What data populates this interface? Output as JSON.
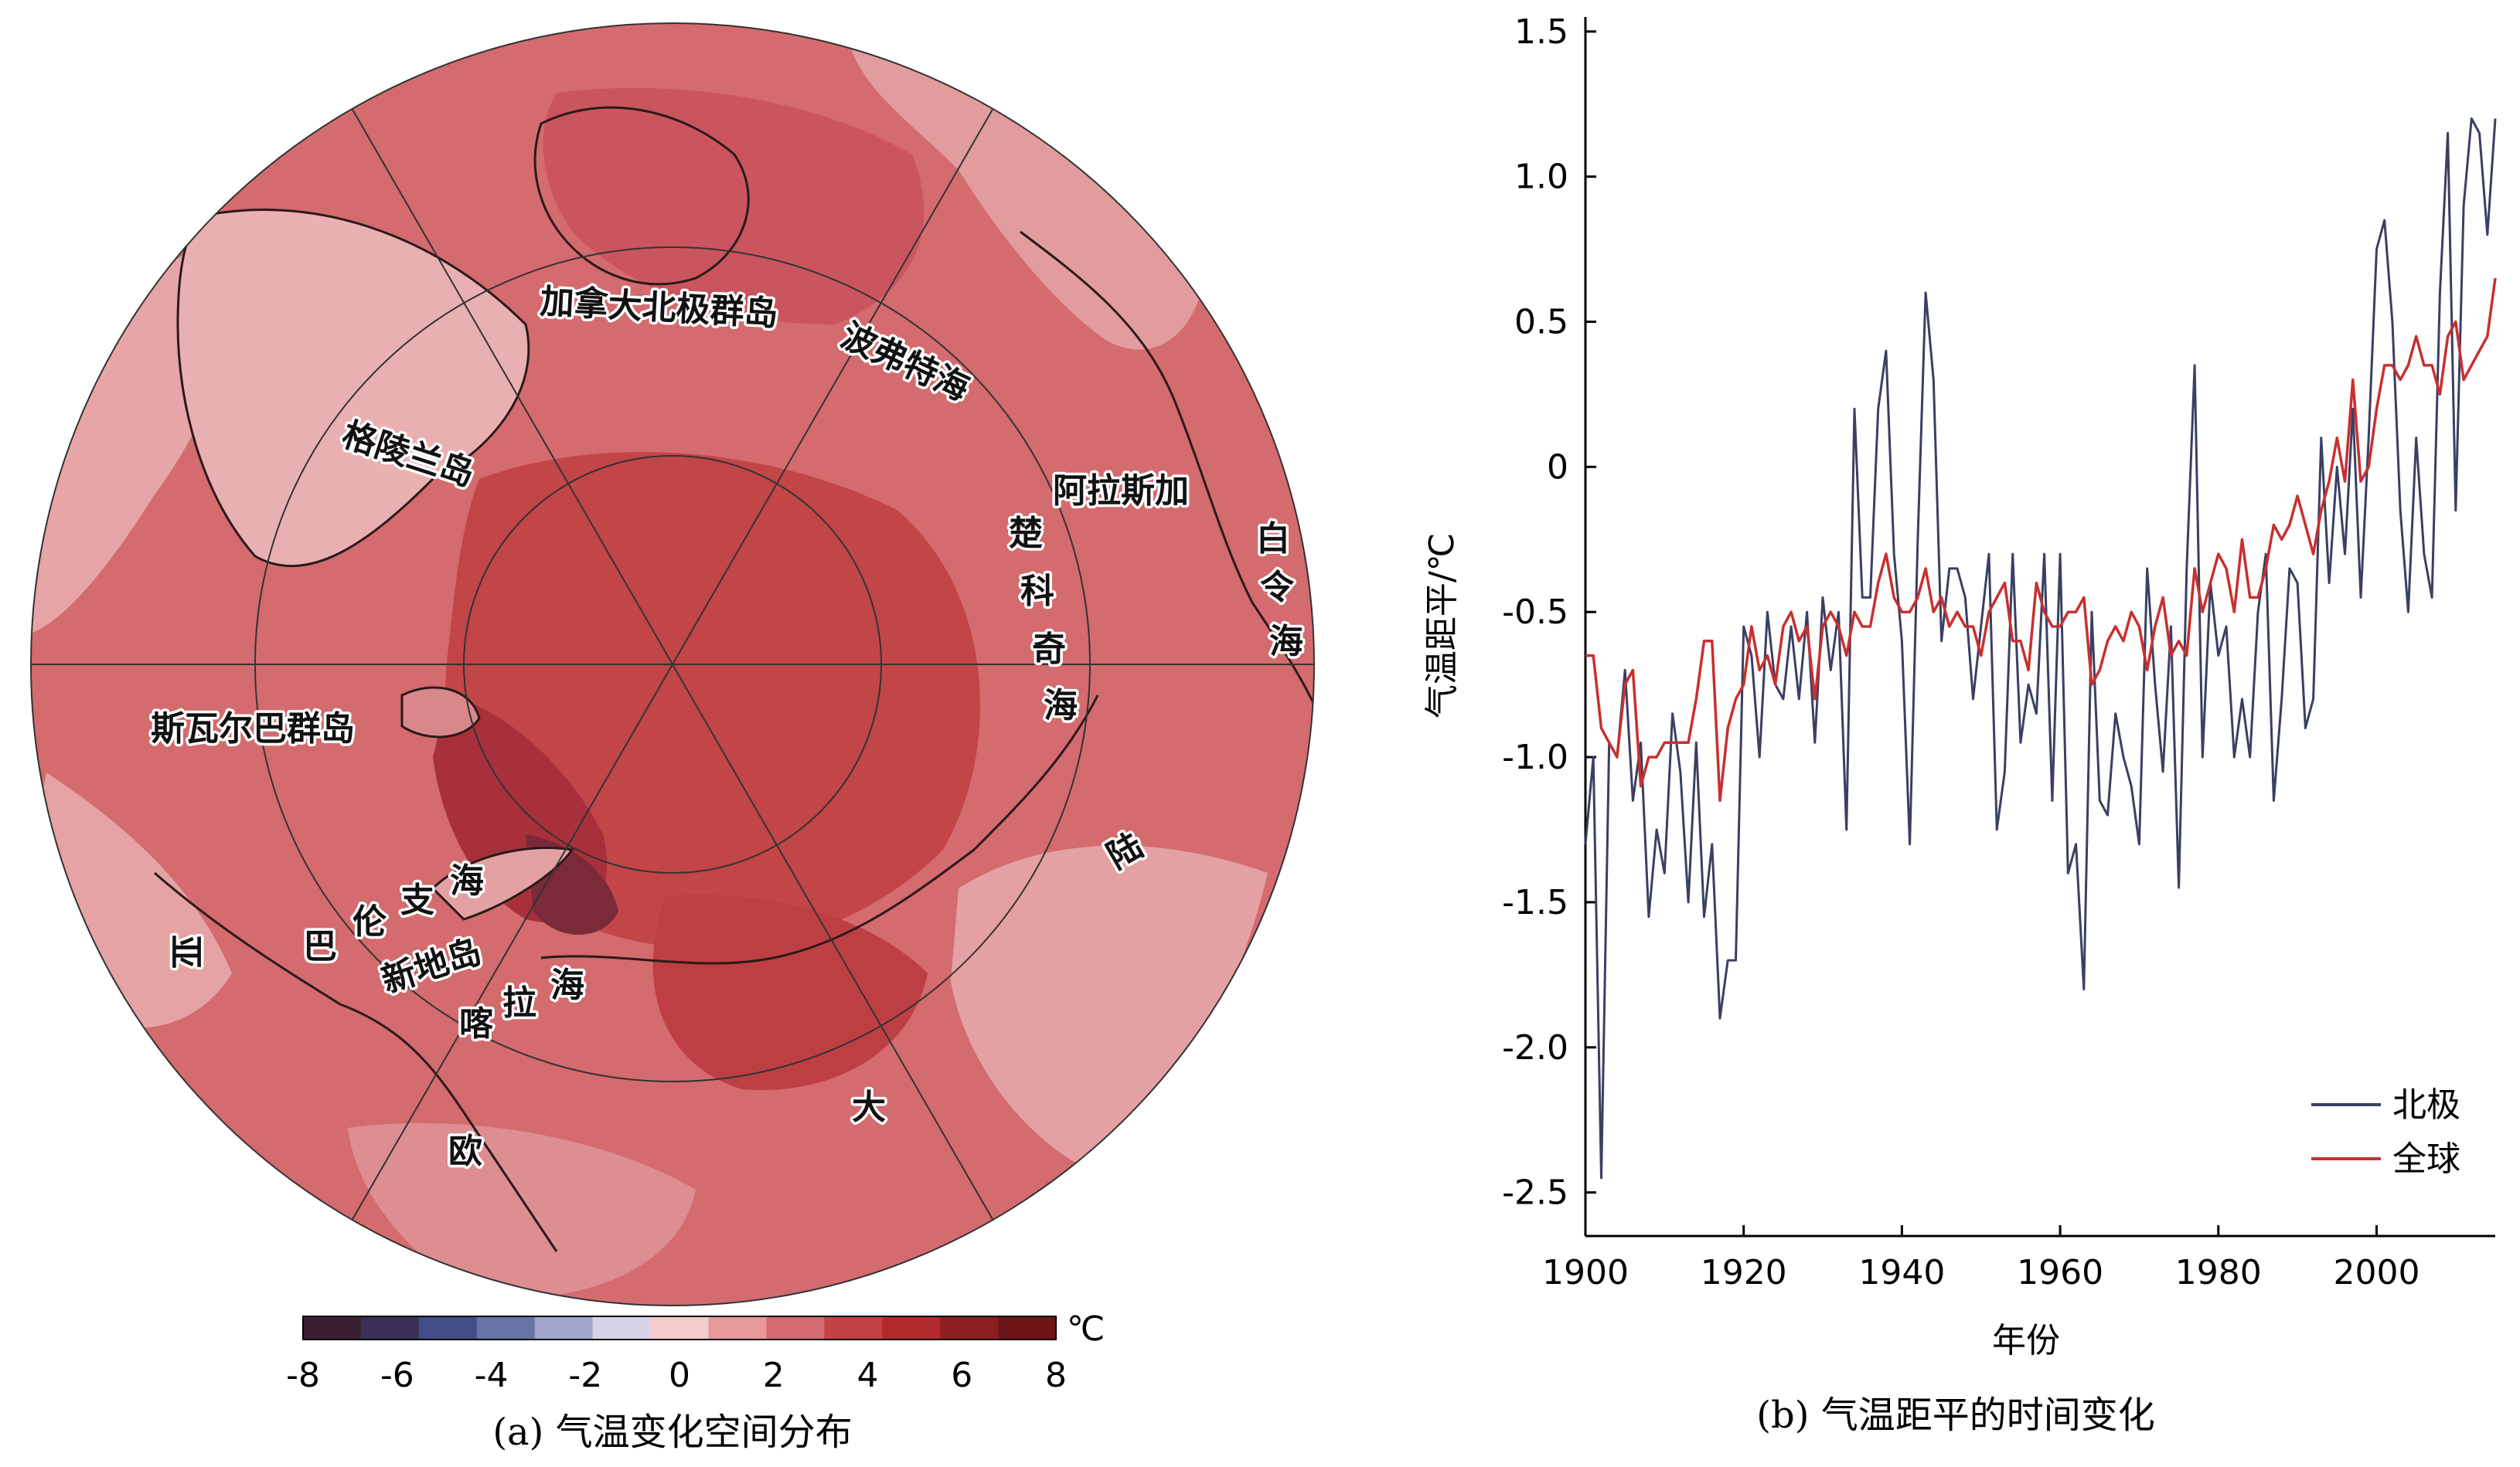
{
  "panel_a": {
    "caption": "(a) 气温变化空间分布",
    "colorbar": {
      "unit": "℃",
      "ticks": [
        "-8",
        "-6",
        "-4",
        "-2",
        "0",
        "2",
        "4",
        "6",
        "8"
      ],
      "colors": [
        "#3a1f30",
        "#3b2f55",
        "#434c86",
        "#6674a6",
        "#a0a5c9",
        "#d7d3e6",
        "#f4cccc",
        "#e79a9c",
        "#d46b70",
        "#c34248",
        "#b02a2c",
        "#8d1e1f",
        "#6d1517"
      ]
    },
    "map_colors": {
      "base": "#d36a6d",
      "warm": "#c2474b",
      "hot": "#b5373b",
      "light": "#e7a5a7",
      "pale": "#f3d0d1",
      "coast": "#2a1a1a"
    },
    "labels": {
      "canadian_arctic": "加拿大北极群岛",
      "beaufort": "波弗特海",
      "alaska": "阿拉斯加",
      "bering": [
        "白",
        "令",
        "海"
      ],
      "chukchi": [
        "楚",
        "科",
        "奇",
        "海"
      ],
      "greenland": "格陵兰岛",
      "svalbard": "斯瓦尔巴群岛",
      "barents": [
        "巴",
        "伦",
        "支",
        "海"
      ],
      "novaya_zemlya": "新地岛",
      "kara": [
        "喀",
        "拉",
        "海"
      ],
      "asia": "亚",
      "europe": "欧",
      "continent_da": "大",
      "continent_lu": "陆"
    }
  },
  "panel_b": {
    "caption": "(b) 气温距平的时间变化",
    "chart_data": {
      "type": "line",
      "title": "",
      "xlabel": "年份",
      "ylabel": "气温距平/℃",
      "xlim": [
        1900,
        2015
      ],
      "ylim": [
        -2.65,
        1.55
      ],
      "xticks": [
        "1900",
        "1920",
        "1940",
        "1960",
        "1980",
        "2000"
      ],
      "yticks": [
        "1.5",
        "1.0",
        "0.5",
        "0",
        "-0.5",
        "-1.0",
        "-1.5",
        "-2.0",
        "-2.5"
      ],
      "legend_position": "bottom-right",
      "series": [
        {
          "name": "北极",
          "color": "#3a3f63",
          "x": [
            1900,
            1901,
            1902,
            1903,
            1904,
            1905,
            1906,
            1907,
            1908,
            1909,
            1910,
            1911,
            1912,
            1913,
            1914,
            1915,
            1916,
            1917,
            1918,
            1919,
            1920,
            1921,
            1922,
            1923,
            1924,
            1925,
            1926,
            1927,
            1928,
            1929,
            1930,
            1931,
            1932,
            1933,
            1934,
            1935,
            1936,
            1937,
            1938,
            1939,
            1940,
            1941,
            1942,
            1943,
            1944,
            1945,
            1946,
            1947,
            1948,
            1949,
            1950,
            1951,
            1952,
            1953,
            1954,
            1955,
            1956,
            1957,
            1958,
            1959,
            1960,
            1961,
            1962,
            1963,
            1964,
            1965,
            1966,
            1967,
            1968,
            1969,
            1970,
            1971,
            1972,
            1973,
            1974,
            1975,
            1976,
            1977,
            1978,
            1979,
            1980,
            1981,
            1982,
            1983,
            1984,
            1985,
            1986,
            1987,
            1988,
            1989,
            1990,
            1991,
            1992,
            1993,
            1994,
            1995,
            1996,
            1997,
            1998,
            1999,
            2000,
            2001,
            2002,
            2003,
            2004,
            2005,
            2006,
            2007,
            2008,
            2009,
            2010,
            2011,
            2012,
            2013,
            2014,
            2015
          ],
          "values": [
            -1.3,
            -1.0,
            -2.45,
            -0.95,
            -1.0,
            -0.7,
            -1.15,
            -0.95,
            -1.55,
            -1.25,
            -1.4,
            -0.85,
            -1.05,
            -1.5,
            -0.95,
            -1.55,
            -1.3,
            -1.9,
            -1.7,
            -1.7,
            -0.55,
            -0.65,
            -1.0,
            -0.5,
            -0.75,
            -0.8,
            -0.55,
            -0.8,
            -0.5,
            -0.95,
            -0.45,
            -0.7,
            -0.5,
            -1.25,
            0.2,
            -0.45,
            -0.45,
            0.2,
            0.4,
            -0.3,
            -0.6,
            -1.3,
            -0.25,
            0.6,
            0.3,
            -0.6,
            -0.35,
            -0.35,
            -0.45,
            -0.8,
            -0.55,
            -0.3,
            -1.25,
            -1.05,
            -0.3,
            -0.95,
            -0.75,
            -0.85,
            -0.3,
            -1.15,
            -0.3,
            -1.4,
            -1.3,
            -1.8,
            -0.5,
            -1.15,
            -1.2,
            -0.85,
            -1.0,
            -1.1,
            -1.3,
            -0.35,
            -0.75,
            -1.05,
            -0.55,
            -1.45,
            -0.35,
            0.35,
            -1.0,
            -0.4,
            -0.65,
            -0.55,
            -1.0,
            -0.8,
            -1.0,
            -0.5,
            -0.3,
            -1.15,
            -0.8,
            -0.35,
            -0.4,
            -0.9,
            -0.8,
            0.1,
            -0.4,
            0.0,
            -0.3,
            0.2,
            -0.45,
            0.1,
            0.75,
            0.85,
            0.5,
            -0.15,
            -0.5,
            0.1,
            -0.3,
            -0.45,
            0.6,
            1.15,
            -0.15,
            0.9,
            1.2,
            1.15,
            0.8,
            1.2
          ]
        },
        {
          "name": "全球",
          "color": "#c8302f",
          "x": [
            1900,
            1901,
            1902,
            1903,
            1904,
            1905,
            1906,
            1907,
            1908,
            1909,
            1910,
            1911,
            1912,
            1913,
            1914,
            1915,
            1916,
            1917,
            1918,
            1919,
            1920,
            1921,
            1922,
            1923,
            1924,
            1925,
            1926,
            1927,
            1928,
            1929,
            1930,
            1931,
            1932,
            1933,
            1934,
            1935,
            1936,
            1937,
            1938,
            1939,
            1940,
            1941,
            1942,
            1943,
            1944,
            1945,
            1946,
            1947,
            1948,
            1949,
            1950,
            1951,
            1952,
            1953,
            1954,
            1955,
            1956,
            1957,
            1958,
            1959,
            1960,
            1961,
            1962,
            1963,
            1964,
            1965,
            1966,
            1967,
            1968,
            1969,
            1970,
            1971,
            1972,
            1973,
            1974,
            1975,
            1976,
            1977,
            1978,
            1979,
            1980,
            1981,
            1982,
            1983,
            1984,
            1985,
            1986,
            1987,
            1988,
            1989,
            1990,
            1991,
            1992,
            1993,
            1994,
            1995,
            1996,
            1997,
            1998,
            1999,
            2000,
            2001,
            2002,
            2003,
            2004,
            2005,
            2006,
            2007,
            2008,
            2009,
            2010,
            2011,
            2012,
            2013,
            2014,
            2015
          ],
          "values": [
            -0.65,
            -0.65,
            -0.9,
            -0.95,
            -1.0,
            -0.75,
            -0.7,
            -1.1,
            -1.0,
            -1.0,
            -0.95,
            -0.95,
            -0.95,
            -0.95,
            -0.8,
            -0.6,
            -0.6,
            -1.15,
            -0.9,
            -0.8,
            -0.75,
            -0.55,
            -0.7,
            -0.65,
            -0.75,
            -0.55,
            -0.5,
            -0.6,
            -0.55,
            -0.8,
            -0.55,
            -0.5,
            -0.55,
            -0.65,
            -0.5,
            -0.55,
            -0.55,
            -0.4,
            -0.3,
            -0.45,
            -0.5,
            -0.5,
            -0.45,
            -0.35,
            -0.5,
            -0.45,
            -0.55,
            -0.5,
            -0.55,
            -0.55,
            -0.65,
            -0.5,
            -0.45,
            -0.4,
            -0.6,
            -0.6,
            -0.7,
            -0.4,
            -0.5,
            -0.55,
            -0.55,
            -0.5,
            -0.5,
            -0.45,
            -0.75,
            -0.7,
            -0.6,
            -0.55,
            -0.6,
            -0.5,
            -0.55,
            -0.7,
            -0.55,
            -0.45,
            -0.65,
            -0.6,
            -0.65,
            -0.35,
            -0.5,
            -0.4,
            -0.3,
            -0.35,
            -0.5,
            -0.25,
            -0.45,
            -0.45,
            -0.35,
            -0.2,
            -0.25,
            -0.2,
            -0.1,
            -0.2,
            -0.3,
            -0.15,
            -0.05,
            0.1,
            -0.05,
            0.3,
            -0.05,
            0.0,
            0.2,
            0.35,
            0.35,
            0.3,
            0.35,
            0.45,
            0.35,
            0.35,
            0.25,
            0.45,
            0.5,
            0.3,
            0.35,
            0.4,
            0.45,
            0.65
          ]
        }
      ]
    }
  }
}
